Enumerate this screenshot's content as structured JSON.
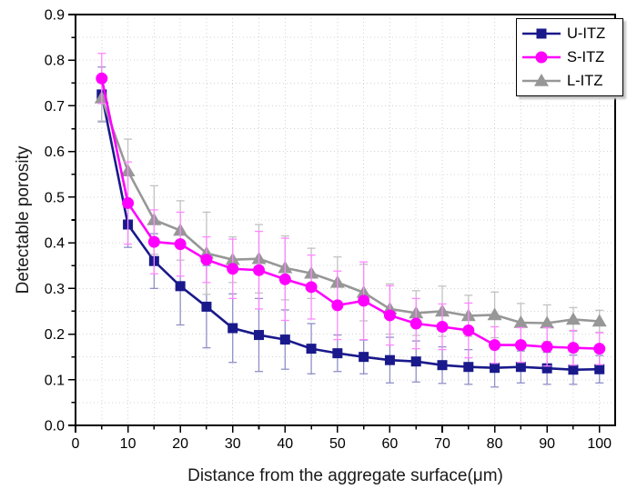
{
  "chart_data": {
    "type": "line",
    "title": "",
    "xlabel": "Distance from the aggregate surface(μm)",
    "ylabel": "Detectable porosity",
    "xlim": [
      0,
      103
    ],
    "ylim": [
      0.0,
      0.9
    ],
    "x_major_ticks": [
      0,
      10,
      20,
      30,
      40,
      50,
      60,
      70,
      80,
      90,
      100
    ],
    "x_tick_labels": [
      "0",
      "10",
      "20",
      "30",
      "40",
      "50",
      "60",
      "70",
      "80",
      "90",
      "100"
    ],
    "x_minor_step": 5,
    "y_major_ticks": [
      0.0,
      0.1,
      0.2,
      0.3,
      0.4,
      0.5,
      0.6,
      0.7,
      0.8,
      0.9
    ],
    "y_tick_labels": [
      "0.0",
      "0.1",
      "0.2",
      "0.3",
      "0.4",
      "0.5",
      "0.6",
      "0.7",
      "0.8",
      "0.9"
    ],
    "y_minor_step": 0.05,
    "grid": "dotted gridlines every 5 um on x and every 0.05 on y",
    "legend_position": "top-right",
    "error_bars": true,
    "x": [
      5,
      10,
      15,
      20,
      25,
      30,
      35,
      40,
      45,
      50,
      55,
      60,
      65,
      70,
      75,
      80,
      85,
      90,
      95,
      100
    ],
    "series": [
      {
        "name": "U-ITZ",
        "marker": "square",
        "color": "#19198c",
        "error_color": "#8f8fc8",
        "values": [
          0.725,
          0.44,
          0.36,
          0.305,
          0.26,
          0.213,
          0.198,
          0.188,
          0.168,
          0.158,
          0.15,
          0.143,
          0.14,
          0.132,
          0.128,
          0.126,
          0.128,
          0.125,
          0.122,
          0.123
        ],
        "errors": [
          0.06,
          0.05,
          0.06,
          0.085,
          0.09,
          0.075,
          0.08,
          0.065,
          0.055,
          0.04,
          0.037,
          0.05,
          0.045,
          0.04,
          0.038,
          0.042,
          0.035,
          0.035,
          0.032,
          0.03
        ]
      },
      {
        "name": "S-ITZ",
        "marker": "circle",
        "color": "#ff00ff",
        "error_color": "#ff87ff",
        "values": [
          0.76,
          0.487,
          0.402,
          0.397,
          0.363,
          0.343,
          0.34,
          0.32,
          0.303,
          0.263,
          0.273,
          0.241,
          0.223,
          0.216,
          0.208,
          0.176,
          0.176,
          0.172,
          0.17,
          0.168
        ],
        "errors": [
          0.055,
          0.09,
          0.07,
          0.07,
          0.05,
          0.065,
          0.085,
          0.09,
          0.07,
          0.075,
          0.085,
          0.065,
          0.055,
          0.05,
          0.06,
          0.04,
          0.038,
          0.042,
          0.038,
          0.035
        ]
      },
      {
        "name": "L-ITZ",
        "marker": "triangle",
        "color": "#979797",
        "error_color": "#c2c2c2",
        "values": [
          0.717,
          0.557,
          0.45,
          0.427,
          0.377,
          0.363,
          0.365,
          0.345,
          0.333,
          0.313,
          0.291,
          0.255,
          0.246,
          0.25,
          0.24,
          0.242,
          0.225,
          0.224,
          0.232,
          0.228
        ],
        "errors": [
          0.05,
          0.07,
          0.075,
          0.065,
          0.09,
          0.05,
          0.075,
          0.07,
          0.055,
          0.056,
          0.062,
          0.055,
          0.049,
          0.055,
          0.045,
          0.05,
          0.042,
          0.04,
          0.026,
          0.024
        ]
      }
    ],
    "draw_order": [
      0,
      2,
      1
    ]
  },
  "legend": {
    "items": [
      {
        "label": "U-ITZ"
      },
      {
        "label": "S-ITZ"
      },
      {
        "label": "L-ITZ"
      }
    ]
  }
}
